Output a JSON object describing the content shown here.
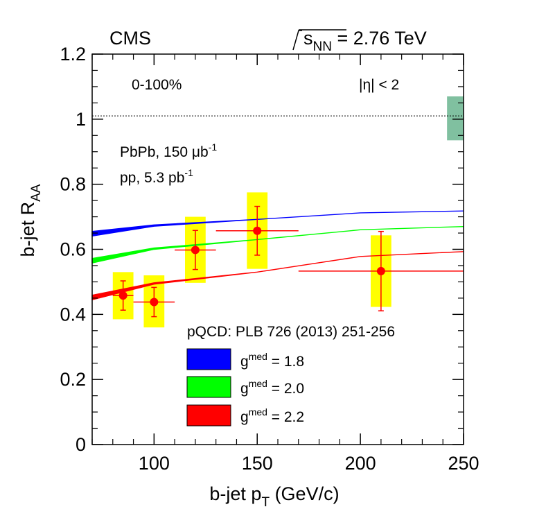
{
  "header": {
    "experiment": "CMS",
    "energy": {
      "sqrt": "s",
      "sub": "NN",
      "value": " = 2.76 TeV"
    }
  },
  "annotations": {
    "centrality": "0-100%",
    "eta": "|η| < 2",
    "lumi_pbpb": {
      "prefix": "PbPb, 150 ",
      "unit": "μb",
      "sup": "-1"
    },
    "lumi_pp": {
      "prefix": "pp, 5.3 pb",
      "sup": "-1"
    }
  },
  "legend": {
    "title": "pQCD: PLB 726 (2013) 251-256",
    "entries": [
      {
        "label": "g",
        "sup": "med",
        "rest": " = 1.8",
        "color": "#0000ff"
      },
      {
        "label": "g",
        "sup": "med",
        "rest": " = 2.0",
        "color": "#00ff00"
      },
      {
        "label": "g",
        "sup": "med",
        "rest": " = 2.2",
        "color": "#ff0000"
      }
    ]
  },
  "chart_data": {
    "type": "scatter",
    "xlabel": {
      "main": "b-jet p",
      "sub": "T",
      "rest": " (GeV/c)"
    },
    "ylabel": {
      "main": "b-jet R",
      "sub": "AA"
    },
    "xlim": [
      70,
      250
    ],
    "ylim": [
      0,
      1.2
    ],
    "xticks": [
      100,
      150,
      200,
      250
    ],
    "yticks": [
      0,
      0.2,
      0.4,
      0.6,
      0.8,
      1,
      1.2
    ],
    "ytick_labels": [
      "0",
      "0.2",
      "0.4",
      "0.6",
      "0.8",
      "1",
      "1.2"
    ],
    "reference_line": 1.01,
    "normalization_box": {
      "x": [
        242,
        250
      ],
      "y": [
        0.935,
        1.07
      ],
      "color": "#80c0a0"
    },
    "data": {
      "name": "b-jet RAA",
      "color": "#ff0000",
      "syst_color": "#ffff00",
      "points": [
        {
          "x": 85,
          "xlo": 80,
          "xhi": 90,
          "y": 0.458,
          "stat": 0.045,
          "syst_lo": 0.385,
          "syst_hi": 0.53,
          "syst_x": [
            80,
            90
          ]
        },
        {
          "x": 100,
          "xlo": 90,
          "xhi": 110,
          "y": 0.438,
          "stat": 0.045,
          "syst_lo": 0.36,
          "syst_hi": 0.52,
          "syst_x": [
            95,
            105
          ]
        },
        {
          "x": 120,
          "xlo": 110,
          "xhi": 130,
          "y": 0.598,
          "stat": 0.06,
          "syst_lo": 0.497,
          "syst_hi": 0.7,
          "syst_x": [
            115,
            125
          ]
        },
        {
          "x": 150,
          "xlo": 130,
          "xhi": 170,
          "y": 0.657,
          "stat": 0.075,
          "syst_lo": 0.54,
          "syst_hi": 0.775,
          "syst_x": [
            145,
            155
          ]
        },
        {
          "x": 210,
          "xlo": 170,
          "xhi": 250,
          "y": 0.533,
          "stat": 0.122,
          "syst_lo": 0.423,
          "syst_hi": 0.643,
          "syst_x": [
            205,
            215
          ]
        }
      ]
    },
    "series": [
      {
        "name": "g^med = 1.8",
        "color": "#0000ff",
        "x": [
          70,
          100,
          150,
          200,
          250
        ],
        "y": [
          0.648,
          0.673,
          0.692,
          0.712,
          0.718
        ],
        "band_width": [
          0.014,
          0.004,
          0.0,
          0.0,
          0.0
        ]
      },
      {
        "name": "g^med = 2.0",
        "color": "#00ff00",
        "x": [
          70,
          100,
          150,
          200,
          250
        ],
        "y": [
          0.565,
          0.602,
          0.63,
          0.66,
          0.67
        ],
        "band_width": [
          0.014,
          0.004,
          0.0,
          0.0,
          0.0
        ]
      },
      {
        "name": "g^med = 2.2",
        "color": "#ff0000",
        "x": [
          70,
          100,
          150,
          200,
          250
        ],
        "y": [
          0.452,
          0.495,
          0.53,
          0.578,
          0.593
        ],
        "band_width": [
          0.014,
          0.004,
          0.0,
          0.0,
          0.0
        ]
      }
    ]
  }
}
